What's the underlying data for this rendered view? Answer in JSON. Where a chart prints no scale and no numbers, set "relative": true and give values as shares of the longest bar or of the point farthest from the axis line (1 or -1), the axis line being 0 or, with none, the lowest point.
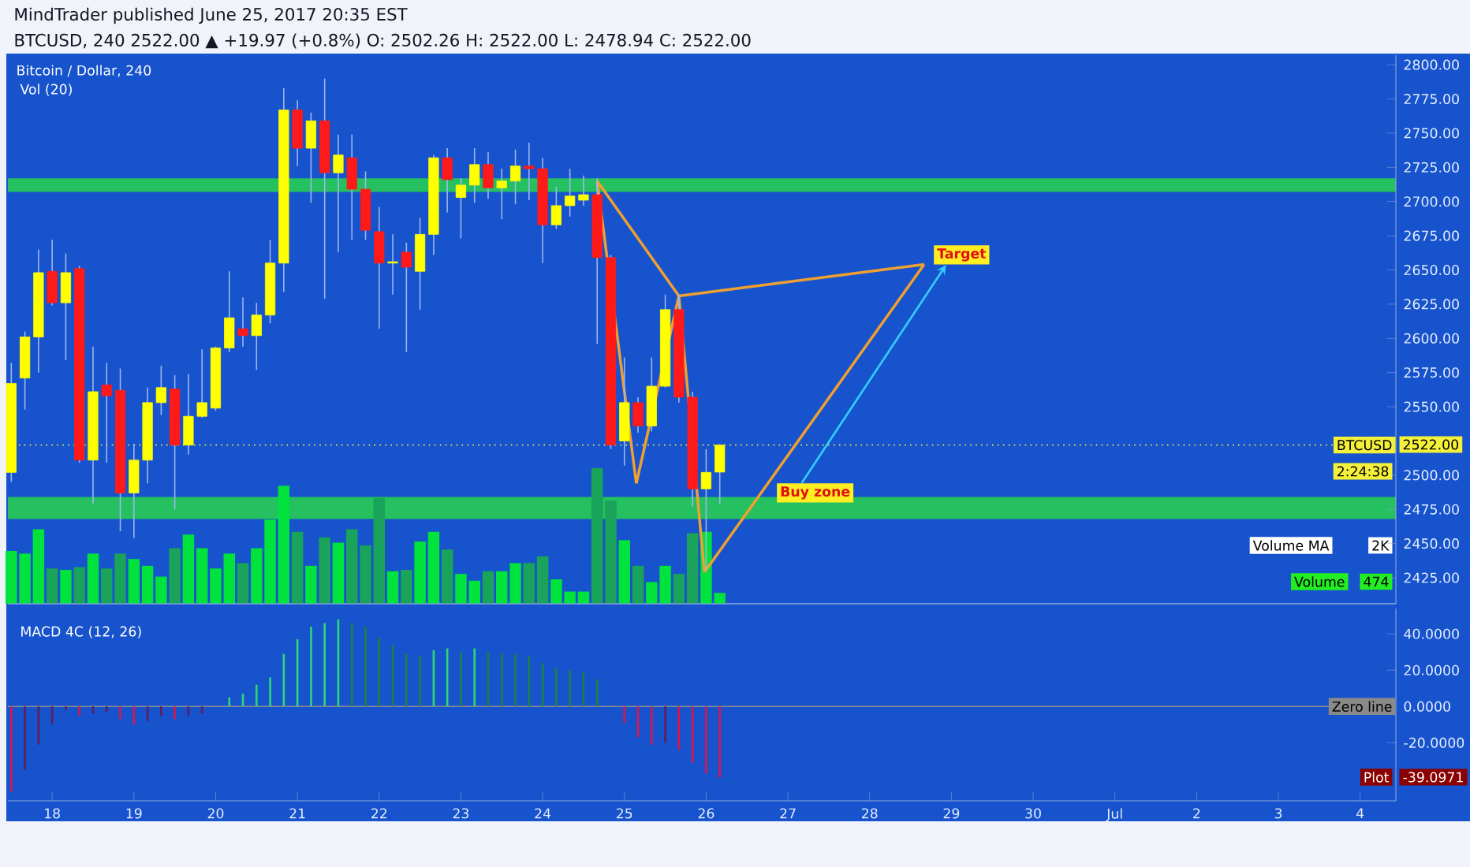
{
  "chart_data": [
    {
      "type": "candlestick",
      "title": "MindTrader published June 25, 2017 20:35 EST",
      "subtitle": "BTCUSD, 240  2522.00 ▲ +19.97 (+0.8%) O: 2502.26 H: 2522.00 L: 2478.94 C: 2522.00",
      "annotations": [
        "Bitcoin / Dollar, 240",
        {
          "text": "Target",
          "x": "2017-06-29T03:00",
          "y": 2661
        },
        {
          "text": "Buy zone",
          "x": "2017-06-27T08:00",
          "y": 2487
        },
        "2522.00",
        "2:24:38"
      ],
      "x": [
        "2017-06-17T12:00",
        "2017-06-17T16:00",
        "2017-06-17T20:00",
        "2017-06-18T00:00",
        "2017-06-18T04:00",
        "2017-06-18T08:00",
        "2017-06-18T12:00",
        "2017-06-18T16:00",
        "2017-06-18T20:00",
        "2017-06-19T00:00",
        "2017-06-19T04:00",
        "2017-06-19T08:00",
        "2017-06-19T12:00",
        "2017-06-19T16:00",
        "2017-06-19T20:00",
        "2017-06-20T00:00",
        "2017-06-20T04:00",
        "2017-06-20T08:00",
        "2017-06-20T12:00",
        "2017-06-20T16:00",
        "2017-06-20T20:00",
        "2017-06-21T00:00",
        "2017-06-21T04:00",
        "2017-06-21T08:00",
        "2017-06-21T12:00",
        "2017-06-21T16:00",
        "2017-06-21T20:00",
        "2017-06-22T00:00",
        "2017-06-22T04:00",
        "2017-06-22T08:00",
        "2017-06-22T12:00",
        "2017-06-22T16:00",
        "2017-06-22T20:00",
        "2017-06-23T00:00",
        "2017-06-23T04:00",
        "2017-06-23T08:00",
        "2017-06-23T12:00",
        "2017-06-23T16:00",
        "2017-06-23T20:00",
        "2017-06-24T00:00",
        "2017-06-24T04:00",
        "2017-06-24T08:00",
        "2017-06-24T12:00",
        "2017-06-24T16:00",
        "2017-06-24T20:00",
        "2017-06-25T00:00",
        "2017-06-25T04:00",
        "2017-06-25T08:00",
        "2017-06-25T12:00",
        "2017-06-25T16:00",
        "2017-06-25T20:00",
        "2017-06-26T00:00",
        "2017-06-26T04:00"
      ],
      "ohlc": [
        [
          2502,
          2582,
          2495,
          2567
        ],
        [
          2571,
          2605,
          2548,
          2601
        ],
        [
          2601,
          2665,
          2575,
          2648
        ],
        [
          2649,
          2672,
          2624,
          2626
        ],
        [
          2626,
          2662,
          2584,
          2648
        ],
        [
          2651,
          2653,
          2509,
          2511
        ],
        [
          2511,
          2594,
          2479,
          2561
        ],
        [
          2566,
          2582,
          2509,
          2558
        ],
        [
          2562,
          2578,
          2459,
          2487
        ],
        [
          2487,
          2523,
          2454,
          2511
        ],
        [
          2511,
          2564,
          2494,
          2553
        ],
        [
          2553,
          2580,
          2544,
          2564
        ],
        [
          2563,
          2573,
          2475,
          2522
        ],
        [
          2522,
          2574,
          2515,
          2543
        ],
        [
          2543,
          2592,
          2542,
          2553
        ],
        [
          2549,
          2594,
          2547,
          2593
        ],
        [
          2593,
          2649,
          2590,
          2615
        ],
        [
          2607,
          2630,
          2594,
          2602
        ],
        [
          2602,
          2626,
          2577,
          2617
        ],
        [
          2617,
          2672,
          2611,
          2655
        ],
        [
          2655,
          2783,
          2634,
          2767
        ],
        [
          2767,
          2774,
          2726,
          2739
        ],
        [
          2739,
          2765,
          2699,
          2759
        ],
        [
          2759,
          2790,
          2629,
          2721
        ],
        [
          2721,
          2749,
          2663,
          2734
        ],
        [
          2732,
          2749,
          2672,
          2709
        ],
        [
          2709,
          2722,
          2672,
          2679
        ],
        [
          2678,
          2696,
          2607,
          2655
        ],
        [
          2655,
          2676,
          2632,
          2656
        ],
        [
          2663,
          2670,
          2590,
          2652
        ],
        [
          2649,
          2688,
          2621,
          2676
        ],
        [
          2676,
          2734,
          2661,
          2732
        ],
        [
          2732,
          2739,
          2692,
          2716
        ],
        [
          2703,
          2717,
          2673,
          2712
        ],
        [
          2712,
          2739,
          2699,
          2727
        ],
        [
          2727,
          2736,
          2702,
          2710
        ],
        [
          2710,
          2724,
          2687,
          2715
        ],
        [
          2715,
          2738,
          2698,
          2726
        ],
        [
          2726,
          2743,
          2701,
          2724
        ],
        [
          2724,
          2732,
          2655,
          2683
        ],
        [
          2683,
          2711,
          2680,
          2697
        ],
        [
          2697,
          2724,
          2689,
          2704
        ],
        [
          2701,
          2719,
          2697,
          2705
        ],
        [
          2705,
          2717,
          2596,
          2659
        ],
        [
          2659,
          2661,
          2519,
          2522
        ],
        [
          2525,
          2586,
          2507,
          2553
        ],
        [
          2553,
          2557,
          2531,
          2536
        ],
        [
          2536,
          2586,
          2532,
          2565
        ],
        [
          2565,
          2632,
          2564,
          2621
        ],
        [
          2621,
          2632,
          2553,
          2557
        ],
        [
          2557,
          2561,
          2477,
          2490
        ],
        [
          2490,
          2519,
          2430,
          2502
        ],
        [
          2502.26,
          2522,
          2478.94,
          2522
        ]
      ],
      "colors": [
        "#ffff00",
        "#ffff00",
        "#ffff00",
        "#ff1a1a",
        "#ffff00",
        "#ff1a1a",
        "#ffff00",
        "#ff1a1a",
        "#ff1a1a",
        "#ffff00",
        "#ffff00",
        "#ffff00",
        "#ff1a1a",
        "#ffff00",
        "#ffff00",
        "#ffff00",
        "#ffff00",
        "#ff1a1a",
        "#ffff00",
        "#ffff00",
        "#ffff00",
        "#ff1a1a",
        "#ffff00",
        "#ff1a1a",
        "#ffff00",
        "#ff1a1a",
        "#ff1a1a",
        "#ff1a1a",
        "#ffff00",
        "#ff1a1a",
        "#ffff00",
        "#ffff00",
        "#ff1a1a",
        "#ffff00",
        "#ffff00",
        "#ff1a1a",
        "#ffff00",
        "#ffff00",
        "#ff1a1a",
        "#ff1a1a",
        "#ffff00",
        "#ffff00",
        "#ffff00",
        "#ff1a1a",
        "#ff1a1a",
        "#ffff00",
        "#ff1a1a",
        "#ffff00",
        "#ffff00",
        "#ff1a1a",
        "#ff1a1a",
        "#ffff00",
        "#ffff00"
      ],
      "series": [
        {
          "type": "line",
          "color": "#f0a030",
          "x": [
            "2017-06-24T16:00",
            "2017-06-25T03:30"
          ],
          "values": [
            2715,
            2494
          ]
        },
        {
          "type": "line",
          "color": "#f0a030",
          "x": [
            "2017-06-25T03:30",
            "2017-06-25T16:00"
          ],
          "values": [
            2494,
            2631
          ]
        },
        {
          "type": "line",
          "color": "#f0a030",
          "x": [
            "2017-06-24T16:00",
            "2017-06-25T16:00"
          ],
          "values": [
            2715,
            2631
          ]
        },
        {
          "type": "line",
          "color": "#f0a030",
          "x": [
            "2017-06-25T16:00",
            "2017-06-28T16:00"
          ],
          "values": [
            2631,
            2654
          ]
        },
        {
          "type": "line",
          "color": "#f0a030",
          "x": [
            "2017-06-25T23:30",
            "2017-06-28T16:00"
          ],
          "values": [
            2429,
            2654
          ]
        },
        {
          "type": "line",
          "color": "#f0a030",
          "x": [
            "2017-06-25T16:00",
            "2017-06-25T23:30"
          ],
          "values": [
            2631,
            2429
          ]
        }
      ],
      "ref_lines": [
        {
          "axis": "y",
          "value": 2522,
          "label": "BTCUSD",
          "color": "#f5f03a",
          "line_style": "dotted"
        }
      ],
      "bands": [
        {
          "axis": "y",
          "from": 2707,
          "to": 2717,
          "color": "#25c060"
        },
        {
          "axis": "y",
          "from": 2468,
          "to": 2484,
          "color": "#25c060"
        }
      ],
      "xlim": [
        "2017-06-17T11:00",
        "2017-07-04T10:30"
      ],
      "ylim": [
        2406,
        2807
      ],
      "yticks": [
        {
          "value": 2425,
          "label": "2425.00"
        },
        {
          "value": 2450,
          "label": "2450.00"
        },
        {
          "value": 2475,
          "label": "2475.00"
        },
        {
          "value": 2500,
          "label": "2500.00"
        },
        {
          "value": 2550,
          "label": "2550.00"
        },
        {
          "value": 2575,
          "label": "2575.00"
        },
        {
          "value": 2600,
          "label": "2600.00"
        },
        {
          "value": 2625,
          "label": "2625.00"
        },
        {
          "value": 2650,
          "label": "2650.00"
        },
        {
          "value": 2675,
          "label": "2675.00"
        },
        {
          "value": 2700,
          "label": "2700.00"
        },
        {
          "value": 2725,
          "label": "2725.00"
        },
        {
          "value": 2750,
          "label": "2750.00"
        },
        {
          "value": 2775,
          "label": "2775.00"
        },
        {
          "value": 2800,
          "label": "2800.00"
        }
      ],
      "tick_labels": "y"
    },
    {
      "type": "bar",
      "title": "Vol (20)",
      "relative": true,
      "annotations": [
        "Volume MA",
        "2K",
        "Volume",
        "474"
      ],
      "x": [
        "2017-06-17T12:00",
        "2017-06-17T16:00",
        "2017-06-17T20:00",
        "2017-06-18T00:00",
        "2017-06-18T04:00",
        "2017-06-18T08:00",
        "2017-06-18T12:00",
        "2017-06-18T16:00",
        "2017-06-18T20:00",
        "2017-06-19T00:00",
        "2017-06-19T04:00",
        "2017-06-19T08:00",
        "2017-06-19T12:00",
        "2017-06-19T16:00",
        "2017-06-19T20:00",
        "2017-06-20T00:00",
        "2017-06-20T04:00",
        "2017-06-20T08:00",
        "2017-06-20T12:00",
        "2017-06-20T16:00",
        "2017-06-20T20:00",
        "2017-06-21T00:00",
        "2017-06-21T04:00",
        "2017-06-21T08:00",
        "2017-06-21T12:00",
        "2017-06-21T16:00",
        "2017-06-21T20:00",
        "2017-06-22T00:00",
        "2017-06-22T04:00",
        "2017-06-22T08:00",
        "2017-06-22T12:00",
        "2017-06-22T16:00",
        "2017-06-22T20:00",
        "2017-06-23T00:00",
        "2017-06-23T04:00",
        "2017-06-23T08:00",
        "2017-06-23T12:00",
        "2017-06-23T16:00",
        "2017-06-23T20:00",
        "2017-06-24T00:00",
        "2017-06-24T04:00",
        "2017-06-24T08:00",
        "2017-06-24T12:00",
        "2017-06-24T16:00",
        "2017-06-24T20:00",
        "2017-06-25T00:00",
        "2017-06-25T04:00",
        "2017-06-25T08:00",
        "2017-06-25T12:00",
        "2017-06-25T16:00",
        "2017-06-25T20:00",
        "2017-06-26T00:00",
        "2017-06-26T04:00"
      ],
      "values": [
        0.39,
        0.37,
        0.55,
        0.26,
        0.25,
        0.27,
        0.37,
        0.26,
        0.37,
        0.33,
        0.28,
        0.2,
        0.41,
        0.51,
        0.41,
        0.26,
        0.37,
        0.3,
        0.41,
        0.62,
        0.87,
        0.53,
        0.28,
        0.49,
        0.45,
        0.55,
        0.43,
        0.78,
        0.24,
        0.25,
        0.46,
        0.53,
        0.4,
        0.22,
        0.17,
        0.24,
        0.24,
        0.3,
        0.3,
        0.35,
        0.18,
        0.09,
        0.09,
        1,
        0.76,
        0.47,
        0.28,
        0.16,
        0.28,
        0.22,
        0.52,
        0.53,
        0.08
      ],
      "colors": [
        "#00e23c",
        "#00e23c",
        "#00e23c",
        "#1aa35a",
        "#00e23c",
        "#1aa35a",
        "#00e23c",
        "#1aa35a",
        "#1aa35a",
        "#00e23c",
        "#00e23c",
        "#00e23c",
        "#1aa35a",
        "#00e23c",
        "#00e23c",
        "#00e23c",
        "#00e23c",
        "#1aa35a",
        "#00e23c",
        "#00e23c",
        "#00e23c",
        "#1aa35a",
        "#00e23c",
        "#1aa35a",
        "#00e23c",
        "#1aa35a",
        "#1aa35a",
        "#1aa35a",
        "#00e23c",
        "#1aa35a",
        "#00e23c",
        "#00e23c",
        "#1aa35a",
        "#00e23c",
        "#00e23c",
        "#1aa35a",
        "#00e23c",
        "#00e23c",
        "#1aa35a",
        "#1aa35a",
        "#00e23c",
        "#00e23c",
        "#00e23c",
        "#1aa35a",
        "#1aa35a",
        "#00e23c",
        "#1aa35a",
        "#00e23c",
        "#00e23c",
        "#1aa35a",
        "#1aa35a",
        "#00e23c",
        "#00e23c"
      ],
      "xlim": [
        "2017-06-17T11:00",
        "2017-07-04T10:30"
      ],
      "tick_labels": false
    },
    {
      "type": "bar",
      "title": "MACD 4C (12, 26)",
      "annotations": [
        "Plot",
        "-39.0971"
      ],
      "x": [
        "2017-06-17T12:00",
        "2017-06-17T16:00",
        "2017-06-17T20:00",
        "2017-06-18T00:00",
        "2017-06-18T04:00",
        "2017-06-18T08:00",
        "2017-06-18T12:00",
        "2017-06-18T16:00",
        "2017-06-18T20:00",
        "2017-06-19T00:00",
        "2017-06-19T04:00",
        "2017-06-19T08:00",
        "2017-06-19T12:00",
        "2017-06-19T16:00",
        "2017-06-19T20:00",
        "2017-06-20T00:00",
        "2017-06-20T04:00",
        "2017-06-20T08:00",
        "2017-06-20T12:00",
        "2017-06-20T16:00",
        "2017-06-20T20:00",
        "2017-06-21T00:00",
        "2017-06-21T04:00",
        "2017-06-21T08:00",
        "2017-06-21T12:00",
        "2017-06-21T16:00",
        "2017-06-21T20:00",
        "2017-06-22T00:00",
        "2017-06-22T04:00",
        "2017-06-22T08:00",
        "2017-06-22T12:00",
        "2017-06-22T16:00",
        "2017-06-22T20:00",
        "2017-06-23T00:00",
        "2017-06-23T04:00",
        "2017-06-23T08:00",
        "2017-06-23T12:00",
        "2017-06-23T16:00",
        "2017-06-23T20:00",
        "2017-06-24T00:00",
        "2017-06-24T04:00",
        "2017-06-24T08:00",
        "2017-06-24T12:00",
        "2017-06-24T16:00",
        "2017-06-24T20:00",
        "2017-06-25T00:00",
        "2017-06-25T04:00",
        "2017-06-25T08:00",
        "2017-06-25T12:00",
        "2017-06-25T16:00",
        "2017-06-25T20:00",
        "2017-06-26T00:00",
        "2017-06-26T04:00"
      ],
      "values": [
        -47,
        -35,
        -21,
        -10,
        -2,
        -5,
        -4,
        -3,
        -7,
        -10,
        -8,
        -5,
        -7,
        -5,
        -4,
        null,
        5,
        7,
        12,
        16,
        29,
        37,
        44,
        46,
        48,
        46,
        44,
        38,
        34,
        29,
        28,
        31,
        32,
        30,
        32,
        30,
        29,
        29,
        28,
        24,
        21,
        20,
        19,
        15,
        null,
        -9,
        -17,
        -21,
        -20,
        -24,
        -31,
        -37,
        -39.0971
      ],
      "colors": [
        "#d8174f",
        "#5e1f5e",
        "#5e1f5e",
        "#5e1f5e",
        "#5e1f5e",
        "#d8174f",
        "#5e1f5e",
        "#5e1f5e",
        "#d8174f",
        "#d8174f",
        "#5e1f5e",
        "#5e1f5e",
        "#d8174f",
        "#5e1f5e",
        "#5e1f5e",
        "#2ed47a",
        "#2ed47a",
        "#2ed47a",
        "#2ed47a",
        "#2ed47a",
        "#2ed47a",
        "#2ed47a",
        "#2ed47a",
        "#2ed47a",
        "#2ed47a",
        "#1b8048",
        "#1b8048",
        "#1b8048",
        "#1b8048",
        "#1b8048",
        "#1b8048",
        "#2ed47a",
        "#2ed47a",
        "#1b8048",
        "#2ed47a",
        "#1b8048",
        "#1b8048",
        "#1b8048",
        "#1b8048",
        "#1b8048",
        "#1b8048",
        "#1b8048",
        "#1b8048",
        "#1b8048",
        "#1b8048",
        "#d8174f",
        "#d8174f",
        "#d8174f",
        "#5e1f5e",
        "#d8174f",
        "#d8174f",
        "#d8174f",
        "#d8174f"
      ],
      "ref_lines": [
        {
          "axis": "y",
          "value": 0,
          "label": "Zero line",
          "color": "#8a8a8a"
        }
      ],
      "xlim": [
        "2017-06-17T11:00",
        "2017-07-04T10:30"
      ],
      "ylim": [
        -52,
        54
      ],
      "yticks": [
        {
          "value": -20,
          "label": "-20.0000"
        },
        {
          "value": 0,
          "label": "0.0000"
        },
        {
          "value": 20,
          "label": "20.0000"
        },
        {
          "value": 40,
          "label": "40.0000"
        }
      ],
      "xticks": [
        {
          "value": "2017-06-18",
          "label": "18"
        },
        {
          "value": "2017-06-19",
          "label": "19"
        },
        {
          "value": "2017-06-20",
          "label": "20"
        },
        {
          "value": "2017-06-21",
          "label": "21"
        },
        {
          "value": "2017-06-22",
          "label": "22"
        },
        {
          "value": "2017-06-23",
          "label": "23"
        },
        {
          "value": "2017-06-24",
          "label": "24"
        },
        {
          "value": "2017-06-25",
          "label": "25"
        },
        {
          "value": "2017-06-26",
          "label": "26"
        },
        {
          "value": "2017-06-27",
          "label": "27"
        },
        {
          "value": "2017-06-28",
          "label": "28"
        },
        {
          "value": "2017-06-29",
          "label": "29"
        },
        {
          "value": "2017-06-30",
          "label": "30"
        },
        {
          "value": "2017-07-01",
          "label": "Jul"
        },
        {
          "value": "2017-07-02",
          "label": "2"
        },
        {
          "value": "2017-07-03",
          "label": "3"
        },
        {
          "value": "2017-07-04",
          "label": "4"
        }
      ]
    }
  ]
}
